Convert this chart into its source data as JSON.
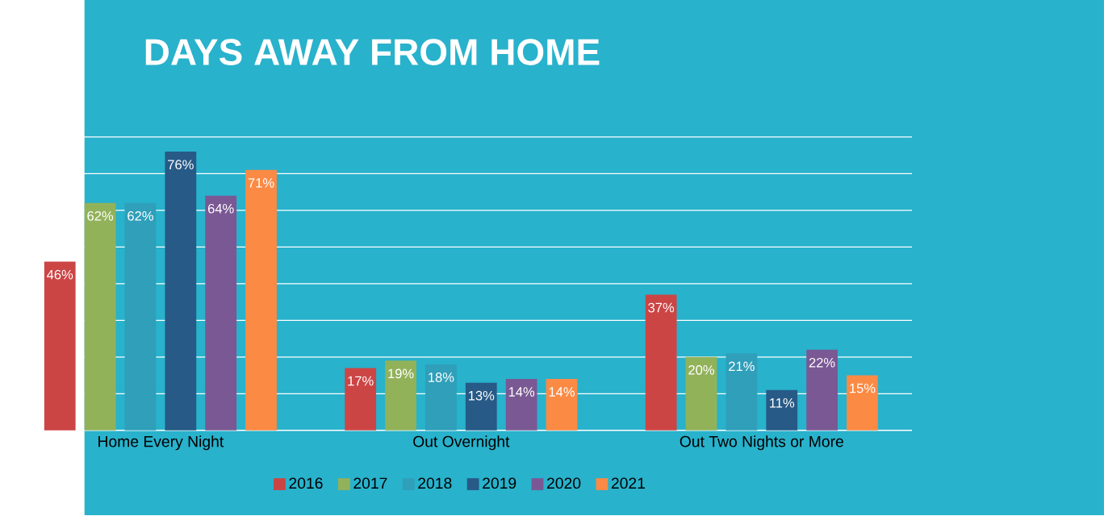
{
  "chart_data": {
    "type": "bar",
    "title": "DAYS AWAY FROM HOME",
    "categories": [
      "Home Every Night",
      "Out Overnight",
      "Out Two Nights or More"
    ],
    "series": [
      {
        "name": "2016",
        "color": "#cc4545",
        "values": [
          46,
          17,
          37
        ],
        "value_labels": [
          "46%",
          "17%",
          "37%"
        ]
      },
      {
        "name": "2017",
        "color": "#92b25a",
        "values": [
          62,
          19,
          20
        ],
        "value_labels": [
          "62%",
          "19%",
          "20%"
        ]
      },
      {
        "name": "2018",
        "color": "#2f9fba",
        "values": [
          62,
          18,
          21
        ],
        "value_labels": [
          "62%",
          "18%",
          "21%"
        ]
      },
      {
        "name": "2019",
        "color": "#275a86",
        "values": [
          76,
          13,
          11
        ],
        "value_labels": [
          "76%",
          "13%",
          "11%"
        ]
      },
      {
        "name": "2020",
        "color": "#7a5894",
        "values": [
          64,
          14,
          22
        ],
        "value_labels": [
          "64%",
          "14%",
          "22%"
        ]
      },
      {
        "name": "2021",
        "color": "#fb8a44",
        "values": [
          71,
          14,
          15
        ],
        "value_labels": [
          "71%",
          "14%",
          "15%"
        ]
      }
    ],
    "ylim": [
      0,
      80
    ],
    "yticks": [
      {
        "value": 0,
        "label": null
      },
      {
        "value": 10,
        "label": null
      },
      {
        "value": 20,
        "label": null
      },
      {
        "value": 30,
        "label": null
      },
      {
        "value": 40,
        "label": null
      },
      {
        "value": 50,
        "label": null
      },
      {
        "value": 60,
        "label": null
      },
      {
        "value": 70,
        "label": null
      },
      {
        "value": 80,
        "label": null
      }
    ],
    "grid": "y",
    "legend": "bottom",
    "tick_labels": "x"
  }
}
